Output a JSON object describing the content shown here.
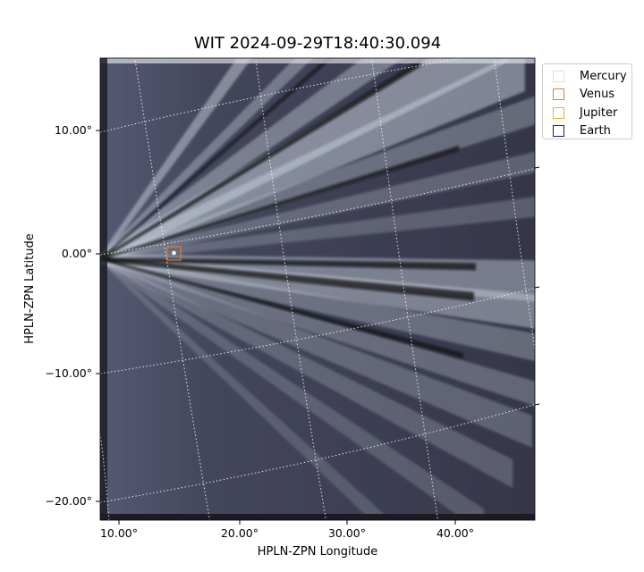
{
  "plot": {
    "title": "WIT 2024-09-29T18:40:30.094",
    "xlabel": "HPLN-ZPN Longitude",
    "ylabel": "HPLN-ZPN Latitude",
    "x_ticks": [
      "10.00°",
      "20.00°",
      "30.00°",
      "40.00°"
    ],
    "y_ticks": [
      "10.00°",
      "0.00°",
      "−10.00°",
      "−20.00°"
    ],
    "colormap": "bone",
    "grid": "dotted white",
    "legend_placement": "outside-top-right"
  },
  "legend": {
    "items": [
      {
        "label": "Mercury",
        "color": "#dddddd"
      },
      {
        "label": "Venus",
        "color": "#e07b3c"
      },
      {
        "label": "Jupiter",
        "color": "#e6b422"
      },
      {
        "label": "Earth",
        "color": "#1a1a6e"
      }
    ]
  },
  "planet_marker": {
    "color": "#e07b3c",
    "latitude": 0.0,
    "longitude": 14.5
  }
}
